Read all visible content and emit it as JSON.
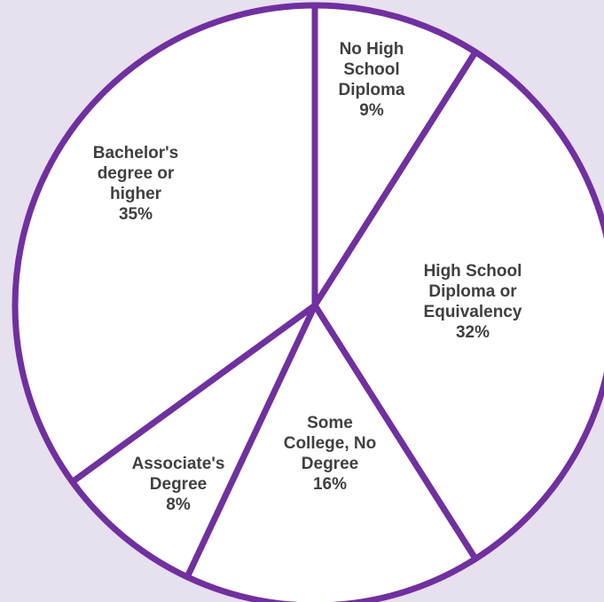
{
  "colors": {
    "background": "#e7e0ee",
    "slice_fill": "#ffffff",
    "slice_stroke": "#7030a0",
    "label_text": "#404040"
  },
  "chart_data": {
    "type": "pie",
    "start": "12 o'clock",
    "direction": "clockwise",
    "slices": [
      {
        "category": "No High School Diploma",
        "value": 9,
        "label_lines": [
          "No High",
          "School",
          "Diploma",
          "9%"
        ]
      },
      {
        "category": "High School Diploma or Equivalency",
        "value": 32,
        "label_lines": [
          "High School",
          "Diploma or",
          "Equivalency",
          "32%"
        ]
      },
      {
        "category": "Some College, No Degree",
        "value": 16,
        "label_lines": [
          "Some",
          "College, No",
          "Degree",
          "16%"
        ]
      },
      {
        "category": "Associate's Degree",
        "value": 8,
        "label_lines": [
          "Associate's",
          "Degree",
          "8%"
        ]
      },
      {
        "category": "Bachelor's degree or higher",
        "value": 35,
        "label_lines": [
          "Bachelor's",
          "degree or",
          "higher",
          "35%"
        ]
      }
    ]
  }
}
